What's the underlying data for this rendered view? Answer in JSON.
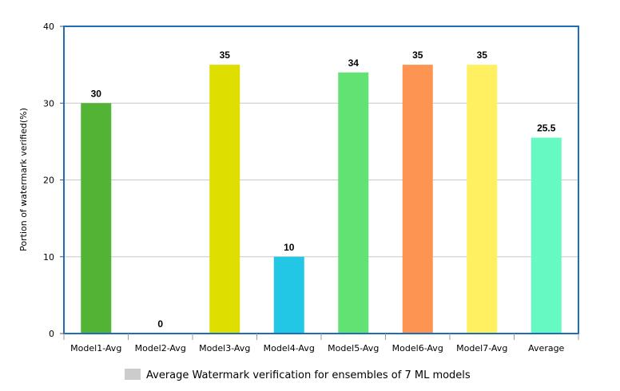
{
  "chart_data": {
    "type": "bar",
    "title": "",
    "xlabel": "",
    "ylabel": "Portion of watermark verified(%)",
    "ylim": [
      0,
      40
    ],
    "yticks": [
      0,
      10,
      20,
      30,
      40
    ],
    "grid": true,
    "legend_position": "bottom",
    "categories": [
      "Model1-Avg",
      "Model2-Avg",
      "Model3-Avg",
      "Model4-Avg",
      "Model5-Avg",
      "Model6-Avg",
      "Model7-Avg",
      "Average"
    ],
    "series": [
      {
        "name": "Average Watermark verification for ensembles of 7 ML models",
        "values": [
          30,
          0,
          35,
          10,
          34,
          35,
          35,
          25.5
        ],
        "data_labels": [
          "30",
          "0",
          "35",
          "10",
          "34",
          "35",
          "35",
          "25.5"
        ],
        "colors": [
          "#52b334",
          "#cccccc",
          "#dede00",
          "#22c7e6",
          "#62e272",
          "#fe9452",
          "#fef060",
          "#66f9c1"
        ]
      }
    ],
    "legend_swatch_color": "#cccccc",
    "frame_color": "#1f6cb7",
    "grid_color": "#c8c8c8"
  }
}
